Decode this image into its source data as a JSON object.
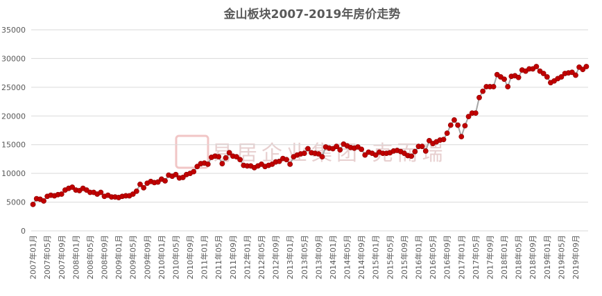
{
  "chart_data": {
    "type": "line",
    "title": "金山板块2007-2019年房价走势",
    "annotation": "易居企业集团·克而瑞",
    "categories": [
      "2007年01月",
      null,
      null,
      null,
      "2007年05月",
      null,
      null,
      null,
      "2007年09月",
      null,
      null,
      null,
      "2008年01月",
      null,
      null,
      null,
      "2008年05月",
      null,
      null,
      null,
      "2008年09月",
      null,
      null,
      null,
      "2009年01月",
      null,
      null,
      null,
      "2009年05月",
      null,
      null,
      null,
      "2009年09月",
      null,
      null,
      null,
      "2010年01月",
      null,
      null,
      null,
      "2010年05月",
      null,
      null,
      null,
      "2010年09月",
      null,
      null,
      null,
      "2011年01月",
      null,
      null,
      null,
      "2011年05月",
      null,
      null,
      null,
      "2011年09月",
      null,
      null,
      null,
      "2012年01月",
      null,
      null,
      null,
      "2012年05月",
      null,
      null,
      null,
      "2012年09月",
      null,
      null,
      null,
      "2013年01月",
      null,
      null,
      null,
      "2013年05月",
      null,
      null,
      null,
      "2013年09月",
      null,
      null,
      null,
      "2014年01月",
      null,
      null,
      null,
      "2014年05月",
      null,
      null,
      null,
      "2014年09月",
      null,
      null,
      null,
      "2015年01月",
      null,
      null,
      null,
      "2015年05月",
      null,
      null,
      null,
      "2015年09月",
      null,
      null,
      null,
      "2016年01月",
      null,
      null,
      null,
      "2016年05月",
      null,
      null,
      null,
      "2016年09月",
      null,
      null,
      null,
      "2017年01月",
      null,
      null,
      null,
      "2017年05月",
      null,
      null,
      null,
      "2017年09月",
      null,
      null,
      null,
      "2018年01月",
      null,
      null,
      null,
      "2018年05月",
      null,
      null,
      null,
      "2018年09月",
      null,
      null,
      null,
      "2019年01月",
      null,
      null,
      null,
      "2019年05月",
      null,
      null,
      null,
      "2019年09月",
      null,
      null,
      null
    ],
    "values": [
      4600,
      5600,
      5500,
      5200,
      6000,
      6200,
      6100,
      6300,
      6400,
      7100,
      7400,
      7600,
      7100,
      7000,
      7400,
      7100,
      6700,
      6700,
      6400,
      6700,
      6000,
      6200,
      5900,
      5900,
      5800,
      6000,
      6100,
      6100,
      6400,
      6900,
      8100,
      7500,
      8300,
      8600,
      8400,
      8500,
      9000,
      8700,
      9700,
      9500,
      9800,
      9200,
      9300,
      9800,
      10000,
      10300,
      11200,
      11700,
      11800,
      11600,
      12800,
      13000,
      12900,
      11700,
      12700,
      13600,
      13000,
      12900,
      12400,
      11400,
      11300,
      11300,
      11000,
      11300,
      11600,
      11200,
      11400,
      11600,
      12000,
      12100,
      12600,
      12400,
      11600,
      12900,
      13200,
      13400,
      13500,
      14300,
      13600,
      13500,
      13400,
      12900,
      14600,
      14400,
      14300,
      14700,
      14100,
      15100,
      14800,
      14500,
      14400,
      14600,
      14200,
      13200,
      13700,
      13500,
      13200,
      13700,
      13500,
      13500,
      13600,
      13900,
      14000,
      13800,
      13500,
      13100,
      13000,
      13800,
      14700,
      14700,
      13900,
      15700,
      15200,
      15500,
      15800,
      15900,
      17000,
      18400,
      19300,
      18400,
      16400,
      18300,
      19900,
      20500,
      20500,
      23200,
      24300,
      25100,
      25100,
      25100,
      27200,
      26800,
      26400,
      25100,
      26900,
      27000,
      26700,
      28000,
      27800,
      28200,
      28200,
      28600,
      27800,
      27400,
      26800,
      25800,
      26100,
      26500,
      26800,
      27400,
      27500,
      27600,
      27100,
      28500,
      28100,
      28600
    ],
    "line_color": "#a5a5a5",
    "marker_color": "#c00000",
    "ylim": [
      0,
      35000
    ],
    "yticks": [
      0,
      5000,
      10000,
      15000,
      20000,
      25000,
      30000,
      35000
    ],
    "grid": true
  }
}
